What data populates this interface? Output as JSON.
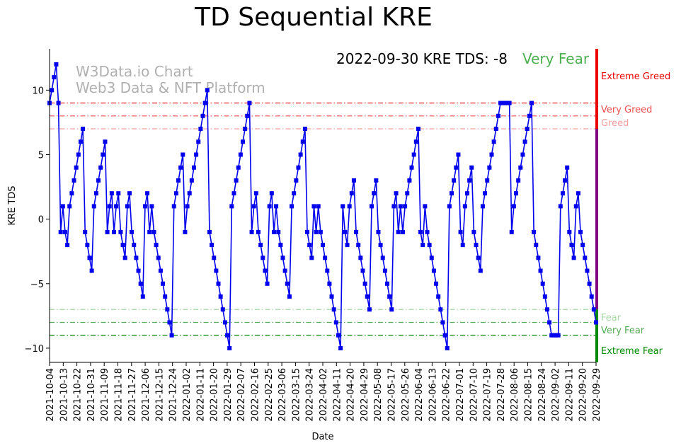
{
  "chart_data": {
    "type": "line",
    "title": "TD Sequential KRE",
    "xlabel": "Date",
    "ylabel": "KRE TDS",
    "ylim": [
      -11.1,
      13.2
    ],
    "yticks": [
      -10,
      -5,
      0,
      5,
      10
    ],
    "ytick_labels": [
      "−10",
      "−5",
      "0",
      "5",
      "10"
    ],
    "date_start": "2021-10-04",
    "date_end": "2022-09-29",
    "xtick_labels": [
      "2021-10-04",
      "2021-10-13",
      "2021-10-22",
      "2021-10-31",
      "2021-11-09",
      "2021-11-18",
      "2021-11-27",
      "2021-12-06",
      "2021-12-15",
      "2021-12-24",
      "2022-01-02",
      "2022-01-11",
      "2022-01-20",
      "2022-01-29",
      "2022-02-07",
      "2022-02-16",
      "2022-02-25",
      "2022-03-06",
      "2022-03-15",
      "2022-03-24",
      "2022-04-02",
      "2022-04-11",
      "2022-04-20",
      "2022-04-29",
      "2022-05-08",
      "2022-05-17",
      "2022-05-26",
      "2022-06-04",
      "2022-06-13",
      "2022-06-22",
      "2022-07-01",
      "2022-07-10",
      "2022-07-19",
      "2022-07-28",
      "2022-08-06",
      "2022-08-15",
      "2022-08-24",
      "2022-09-02",
      "2022-09-11",
      "2022-09-20",
      "2022-09-29"
    ],
    "series": [
      {
        "name": "KRE TDS",
        "color": "#0000ee",
        "values": [
          9,
          10,
          11,
          12,
          9,
          -1,
          1,
          -1,
          -2,
          1,
          2,
          3,
          4,
          5,
          6,
          7,
          -1,
          -2,
          -3,
          -4,
          1,
          2,
          3,
          4,
          5,
          6,
          -1,
          1,
          2,
          -1,
          1,
          2,
          -1,
          -2,
          -3,
          1,
          2,
          -1,
          -2,
          -3,
          -4,
          -5,
          -6,
          1,
          2,
          -1,
          1,
          -1,
          -2,
          -3,
          -4,
          -5,
          -6,
          -7,
          -8,
          -9,
          1,
          2,
          3,
          4,
          5,
          -1,
          1,
          2,
          3,
          4,
          5,
          6,
          7,
          8,
          9,
          10,
          -1,
          -2,
          -3,
          -4,
          -5,
          -6,
          -7,
          -8,
          -9,
          -10,
          1,
          2,
          3,
          4,
          5,
          6,
          7,
          8,
          9,
          -1,
          1,
          2,
          -1,
          -2,
          -3,
          -4,
          -5,
          1,
          2,
          -1,
          1,
          -1,
          -2,
          -3,
          -4,
          -5,
          -6,
          1,
          2,
          3,
          4,
          5,
          6,
          7,
          -1,
          -2,
          -3,
          1,
          -1,
          1,
          -1,
          -2,
          -3,
          -4,
          -5,
          -6,
          -7,
          -8,
          -9,
          -10,
          1,
          -1,
          -2,
          1,
          2,
          3,
          -1,
          -2,
          -3,
          -4,
          -5,
          -6,
          -7,
          1,
          2,
          3,
          -1,
          -2,
          -3,
          -4,
          -5,
          -6,
          -7,
          1,
          2,
          -1,
          1,
          -1,
          1,
          2,
          3,
          4,
          5,
          6,
          7,
          -1,
          -2,
          1,
          -1,
          -2,
          -3,
          -4,
          -5,
          -6,
          -7,
          -8,
          -9,
          -10,
          1,
          2,
          3,
          4,
          5,
          -1,
          -2,
          1,
          2,
          3,
          4,
          -1,
          -2,
          -3,
          -4,
          1,
          2,
          3,
          4,
          5,
          6,
          7,
          8,
          9,
          9,
          9,
          9,
          9,
          -1,
          1,
          2,
          3,
          4,
          5,
          6,
          7,
          8,
          9,
          -1,
          -2,
          -3,
          -4,
          -5,
          -6,
          -7,
          -8,
          -9,
          -9,
          -9,
          -9,
          1,
          2,
          3,
          4,
          -1,
          -2,
          -3,
          1,
          2,
          -1,
          -2,
          -3,
          -4,
          -5,
          -6,
          -7,
          -8
        ]
      }
    ],
    "threshold_lines": [
      {
        "name": "Extreme Greed",
        "value": 9,
        "color": "#ee0000"
      },
      {
        "name": "Very Greed",
        "value": 8,
        "color": "#f05050"
      },
      {
        "name": "Greed",
        "value": 7,
        "color": "#f4a0a0"
      },
      {
        "name": "Fear",
        "value": -7,
        "color": "#a8d8a8"
      },
      {
        "name": "Very Fear",
        "value": -8,
        "color": "#55aa55"
      },
      {
        "name": "Extreme Fear",
        "value": -9,
        "color": "#008800"
      }
    ],
    "zone_labels": [
      {
        "text": "Extreme Greed",
        "color": "#ee0000"
      },
      {
        "text": "Very Greed",
        "color": "#f05050"
      },
      {
        "text": "Greed",
        "color": "#f4a0a0"
      },
      {
        "text": "Fear",
        "color": "#a8d8a8"
      },
      {
        "text": "Very Fear",
        "color": "#55aa55"
      },
      {
        "text": "Extreme Fear",
        "color": "#008800"
      }
    ],
    "status_bar_colors": {
      "greed": "#ee0000",
      "neutral": "#800080",
      "fear": "#008800"
    },
    "annotation": {
      "text": "2022-09-30 KRE TDS: -8",
      "status": "Very Fear",
      "status_color": "#4caf50"
    },
    "watermark": {
      "line1": "W3Data.io Chart",
      "line2": "Web3 Data & NFT Platform",
      "color": "#b0b0b0"
    }
  }
}
